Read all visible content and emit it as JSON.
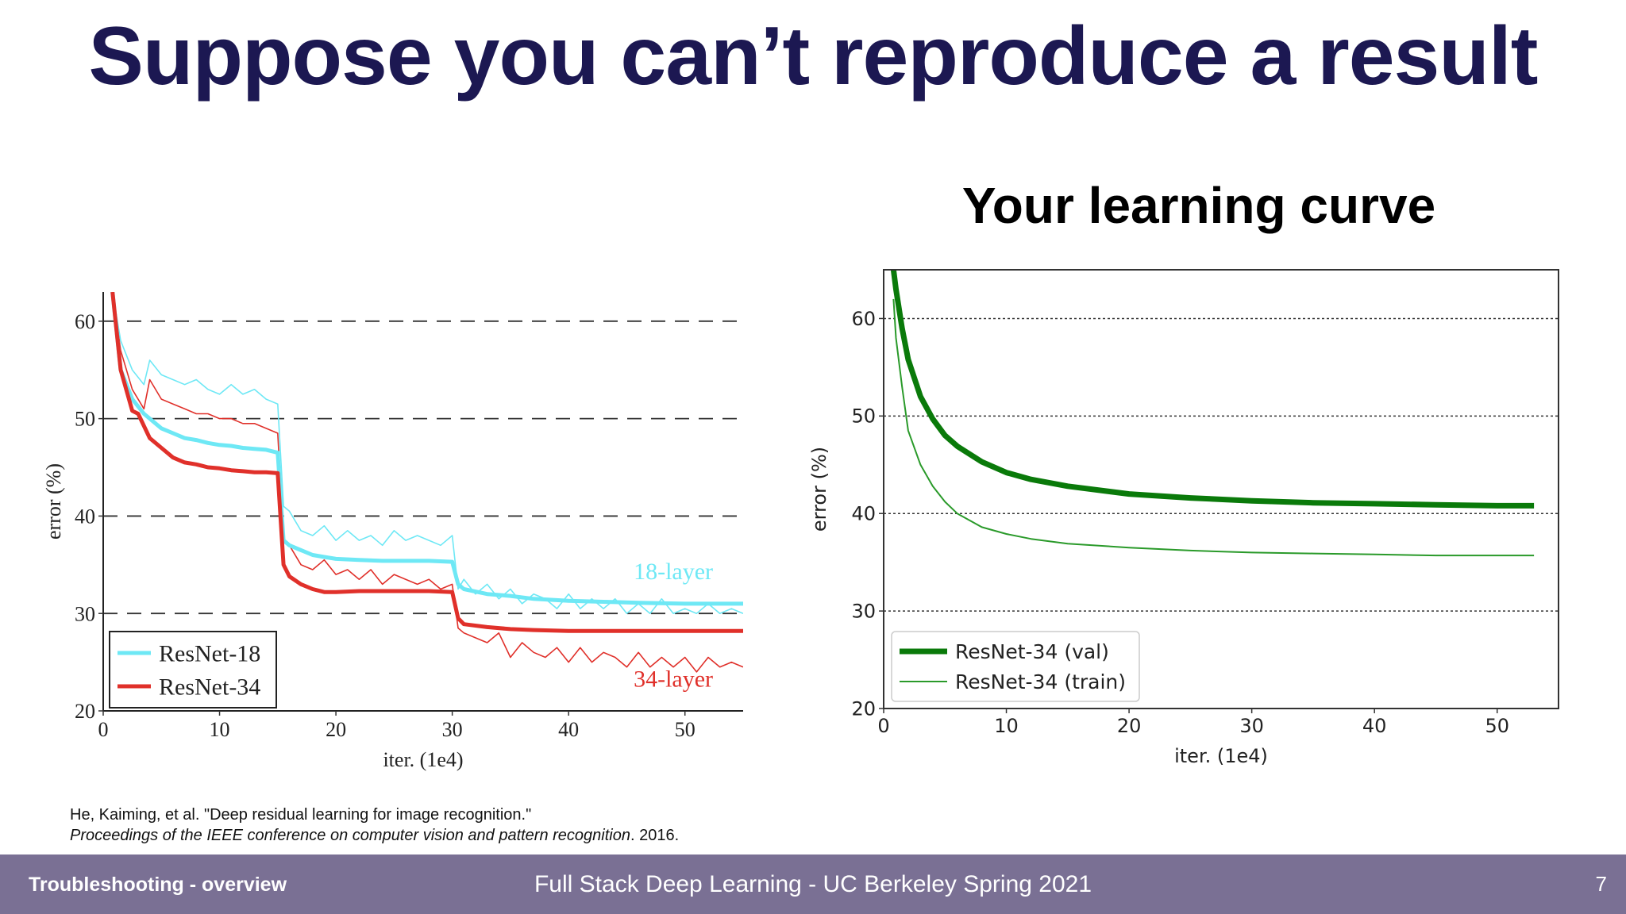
{
  "slide": {
    "title": "Suppose you can’t reproduce a result",
    "right_caption": "Your learning curve",
    "citation_line1": "He, Kaiming, et al. \"Deep residual learning for image recognition.\"",
    "citation_venue": "Proceedings of the IEEE conference on computer vision and pattern recognition",
    "citation_year": ". 2016."
  },
  "footer": {
    "left": "Troubleshooting - overview",
    "center": "Full Stack Deep Learning - UC Berkeley Spring 2021",
    "page": "7"
  },
  "colors": {
    "title": "#1c1852",
    "footer_bg": "#7a7094",
    "resnet18": "#6ee8f5",
    "resnet34": "#e0302a",
    "val_green": "#0a7a0a",
    "train_green": "#2a9a2a"
  },
  "chart_data": [
    {
      "type": "line",
      "title": "",
      "xlabel": "iter. (1e4)",
      "ylabel": "error (%)",
      "xlim": [
        0,
        55
      ],
      "ylim": [
        20,
        63
      ],
      "xticks": [
        0,
        10,
        20,
        30,
        40,
        50
      ],
      "yticks": [
        20,
        30,
        40,
        50,
        60
      ],
      "grid": "dashed horizontal at 30, 40, 50, 60",
      "legend_position": "bottom-left",
      "annotations": [
        {
          "text": "18-layer",
          "x": 49,
          "y": 33.5,
          "color": "#6ee8f5"
        },
        {
          "text": "34-layer",
          "x": 49,
          "y": 22.5,
          "color": "#e0302a"
        }
      ],
      "series": [
        {
          "name": "ResNet-18",
          "color": "#6ee8f5",
          "width": "thick",
          "x": [
            0.8,
            1.5,
            2.5,
            3.5,
            5,
            6,
            7,
            8,
            9,
            10,
            11,
            12,
            13,
            14,
            15,
            15.5,
            16,
            17,
            18,
            19,
            20,
            22,
            24,
            26,
            28,
            30,
            30.5,
            31,
            33,
            35,
            37,
            40,
            43,
            46,
            50,
            55
          ],
          "y": [
            63,
            55,
            52,
            50.5,
            49,
            48.5,
            48,
            47.8,
            47.5,
            47.3,
            47.2,
            47,
            46.9,
            46.8,
            46.5,
            37.5,
            37,
            36.5,
            36,
            35.8,
            35.6,
            35.5,
            35.4,
            35.4,
            35.4,
            35.3,
            33,
            32.5,
            32,
            31.8,
            31.5,
            31.3,
            31.2,
            31.1,
            31,
            31
          ]
        },
        {
          "name": "ResNet-34",
          "color": "#e0302a",
          "width": "thick",
          "x": [
            0.8,
            1.5,
            2.5,
            3,
            4,
            5,
            6,
            7,
            8,
            9,
            10,
            11,
            12,
            13,
            14,
            15,
            15.5,
            16,
            17,
            18,
            19,
            20,
            22,
            24,
            26,
            28,
            30,
            30.5,
            31,
            33,
            35,
            37,
            40,
            43,
            46,
            50,
            55
          ],
          "y": [
            63,
            55,
            50.8,
            50.5,
            48,
            47,
            46,
            45.5,
            45.3,
            45,
            44.9,
            44.7,
            44.6,
            44.5,
            44.5,
            44.4,
            35,
            33.8,
            33,
            32.5,
            32.2,
            32.2,
            32.3,
            32.3,
            32.3,
            32.3,
            32.2,
            29.5,
            28.9,
            28.6,
            28.4,
            28.3,
            28.2,
            28.2,
            28.2,
            28.2,
            28.2
          ]
        },
        {
          "name": "ResNet-18 (train)",
          "color": "#6ee8f5",
          "width": "thin",
          "x": [
            0.8,
            1.5,
            2.5,
            3.5,
            4,
            5,
            6,
            7,
            8,
            9,
            10,
            11,
            12,
            13,
            14,
            15,
            15.5,
            16,
            17,
            18,
            19,
            20,
            21,
            22,
            23,
            24,
            25,
            26,
            27,
            28,
            29,
            30,
            30.5,
            31,
            32,
            33,
            34,
            35,
            36,
            37,
            38,
            39,
            40,
            41,
            42,
            43,
            44,
            45,
            46,
            47,
            48,
            49,
            50,
            51,
            52,
            53,
            54,
            55
          ],
          "y": [
            63,
            58,
            55,
            53.5,
            56,
            54.5,
            54,
            53.5,
            54,
            53,
            52.5,
            53.5,
            52.5,
            53,
            52,
            51.5,
            41,
            40.5,
            38.5,
            38,
            39,
            37.5,
            38.5,
            37.5,
            38,
            37,
            38.5,
            37.5,
            38,
            37.5,
            37,
            38,
            32.5,
            33.5,
            32,
            33,
            31.5,
            32.5,
            31,
            32,
            31.5,
            30.5,
            32,
            30.5,
            31.5,
            30.5,
            31.5,
            30,
            31,
            30,
            31.5,
            30,
            30.5,
            30,
            31,
            30,
            30.5,
            30
          ]
        },
        {
          "name": "ResNet-34 (train)",
          "color": "#e0302a",
          "width": "thin",
          "x": [
            0.8,
            1.5,
            2.5,
            3.5,
            4,
            5,
            6,
            7,
            8,
            9,
            10,
            11,
            12,
            13,
            14,
            15,
            15.5,
            16,
            17,
            18,
            19,
            20,
            21,
            22,
            23,
            24,
            25,
            26,
            27,
            28,
            29,
            30,
            30.5,
            31,
            32,
            33,
            34,
            35,
            36,
            37,
            38,
            39,
            40,
            41,
            42,
            43,
            44,
            45,
            46,
            47,
            48,
            49,
            50,
            51,
            52,
            53,
            54,
            55
          ],
          "y": [
            63,
            57,
            53,
            51,
            54,
            52,
            51.5,
            51,
            50.5,
            50.5,
            50,
            50,
            49.5,
            49.5,
            49,
            48.5,
            37.5,
            37,
            35,
            34.5,
            35.5,
            34,
            34.5,
            33.5,
            34.5,
            33,
            34,
            33.5,
            33,
            33.5,
            32.5,
            33,
            28.5,
            28,
            27.5,
            27,
            28,
            25.5,
            27,
            26,
            25.5,
            26.5,
            25,
            26.5,
            25,
            26,
            25.5,
            24.5,
            26,
            24.5,
            25.5,
            24.5,
            25.5,
            24,
            25.5,
            24.5,
            25,
            24.5
          ]
        }
      ],
      "legend": [
        {
          "label": "ResNet-18",
          "color": "#6ee8f5"
        },
        {
          "label": "ResNet-34",
          "color": "#e0302a"
        }
      ]
    },
    {
      "type": "line",
      "title": "Your learning curve",
      "xlabel": "iter. (1e4)",
      "ylabel": "error (%)",
      "xlim": [
        0,
        55
      ],
      "ylim": [
        20,
        65
      ],
      "xticks": [
        0,
        10,
        20,
        30,
        40,
        50
      ],
      "yticks": [
        20,
        30,
        40,
        50,
        60
      ],
      "grid": "dotted horizontal at 30, 40, 50, 60",
      "legend_position": "bottom-left",
      "series": [
        {
          "name": "ResNet-34 (val)",
          "color": "#0a7a0a",
          "width": "thick",
          "x": [
            0.8,
            1,
            1.5,
            2,
            3,
            4,
            5,
            6,
            8,
            10,
            12,
            15,
            20,
            25,
            30,
            35,
            40,
            45,
            50,
            53
          ],
          "y": [
            65,
            63,
            59,
            55.8,
            52,
            49.7,
            48,
            46.9,
            45.3,
            44.2,
            43.5,
            42.8,
            42,
            41.6,
            41.3,
            41.1,
            41,
            40.9,
            40.8,
            40.8
          ]
        },
        {
          "name": "ResNet-34 (train)",
          "color": "#2a9a2a",
          "width": "thin",
          "x": [
            0.8,
            1,
            1.5,
            2,
            3,
            4,
            5,
            6,
            8,
            10,
            12,
            15,
            20,
            25,
            30,
            35,
            40,
            45,
            50,
            53
          ],
          "y": [
            62,
            58,
            53,
            48.5,
            45,
            42.8,
            41.2,
            40,
            38.6,
            37.9,
            37.4,
            36.9,
            36.5,
            36.2,
            36,
            35.9,
            35.8,
            35.7,
            35.7,
            35.7
          ]
        }
      ],
      "legend": [
        {
          "label": "ResNet-34 (val)",
          "color": "#0a7a0a"
        },
        {
          "label": "ResNet-34 (train)",
          "color": "#2a9a2a"
        }
      ]
    }
  ]
}
